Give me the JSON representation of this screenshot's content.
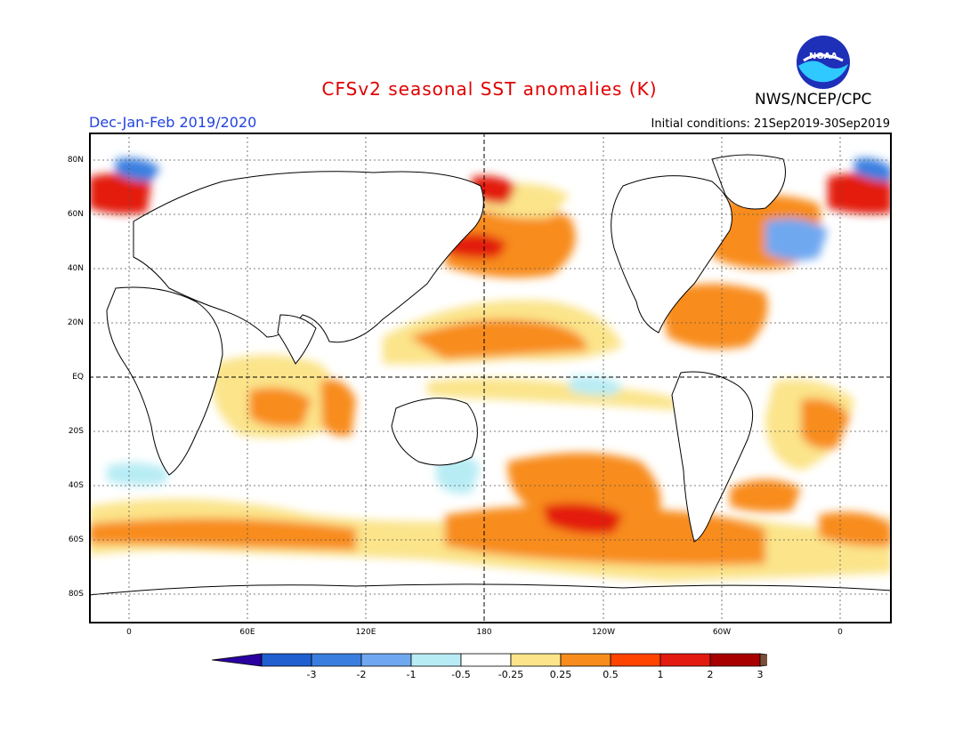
{
  "header": {
    "title": "CFSv2 seasonal SST anomalies (K)",
    "period": "Dec-Jan-Feb 2019/2020",
    "initial_conditions": "Initial conditions: 21Sep2019-30Sep2019",
    "agency": "NWS/NCEP/CPC",
    "logo_text": "NOAA"
  },
  "map": {
    "lat_labels": [
      "80N",
      "60N",
      "40N",
      "20N",
      "EQ",
      "20S",
      "40S",
      "60S",
      "80S"
    ],
    "lon_labels": [
      "0",
      "60E",
      "120E",
      "180",
      "120W",
      "60W",
      "0"
    ]
  },
  "colorbar": {
    "labels": [
      "-3",
      "-2",
      "-1",
      "-0.5",
      "-0.25",
      "0.25",
      "0.5",
      "1",
      "2",
      "3"
    ],
    "colors": [
      "#2a00a0",
      "#1f5fd0",
      "#3a7fe0",
      "#6fa8f0",
      "#b8ecf4",
      "#ffffff",
      "#fbe48a",
      "#f88c1c",
      "#ff4400",
      "#e31a10",
      "#a80000",
      "#7a4f3a"
    ]
  }
}
